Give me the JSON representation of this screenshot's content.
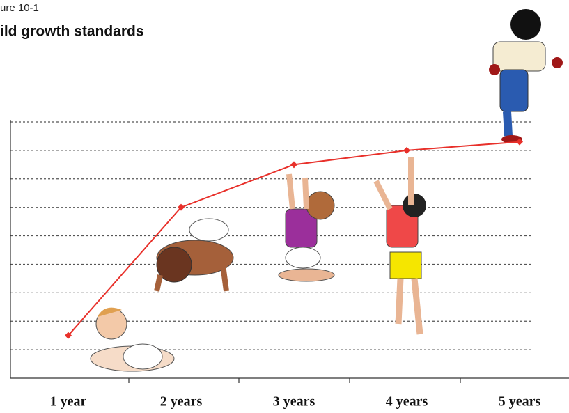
{
  "chart_data": {
    "type": "line",
    "title": "ure 10-1",
    "subtitle": "ild growth standards",
    "categories": [
      "1 year",
      "2 years",
      "3 years",
      "4 years",
      "5 years"
    ],
    "values": [
      1.5,
      6,
      7.5,
      8,
      8.3
    ],
    "color": "#e8302a",
    "ylim": [
      0,
      9
    ],
    "yticks": [
      1,
      2,
      3,
      4,
      5,
      6,
      7,
      8,
      9
    ],
    "grid": true
  }
}
